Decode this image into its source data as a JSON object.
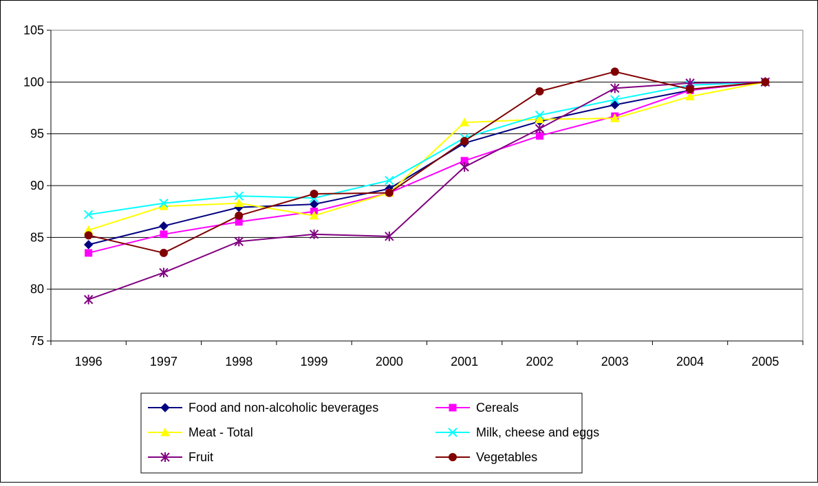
{
  "chart_data": {
    "type": "line",
    "title": "",
    "xlabel": "",
    "ylabel": "",
    "x": [
      "1996",
      "1997",
      "1998",
      "1999",
      "2000",
      "2001",
      "2002",
      "2003",
      "2004",
      "2005"
    ],
    "ylim": [
      75,
      105
    ],
    "yticks": [
      75,
      80,
      85,
      90,
      95,
      100,
      105
    ],
    "grid": "horizontal",
    "legend_position": "bottom",
    "series": [
      {
        "name": "Food and non-alcoholic beverages",
        "color": "#000080",
        "marker": "diamond",
        "values": [
          84.3,
          86.1,
          87.9,
          88.2,
          89.7,
          94.1,
          96.2,
          97.8,
          99.2,
          100.0
        ]
      },
      {
        "name": "Cereals",
        "color": "#FF00FF",
        "marker": "square",
        "values": [
          83.5,
          85.3,
          86.5,
          87.5,
          89.3,
          92.4,
          94.8,
          96.7,
          99.2,
          100.0
        ]
      },
      {
        "name": "Meat - Total",
        "color": "#FFFF00",
        "marker": "triangle",
        "values": [
          85.7,
          88.0,
          88.3,
          87.1,
          89.3,
          96.1,
          96.4,
          96.5,
          98.6,
          100.0
        ]
      },
      {
        "name": "Milk, cheese and eggs",
        "color": "#00FFFF",
        "marker": "x",
        "values": [
          87.2,
          88.3,
          89.0,
          88.8,
          90.5,
          94.6,
          96.8,
          98.3,
          99.7,
          100.0
        ]
      },
      {
        "name": "Fruit",
        "color": "#800080",
        "marker": "star",
        "values": [
          79.0,
          81.6,
          84.6,
          85.3,
          85.1,
          91.8,
          95.5,
          99.4,
          99.9,
          100.0
        ]
      },
      {
        "name": "Vegetables",
        "color": "#800000",
        "marker": "circle",
        "values": [
          85.2,
          83.5,
          87.1,
          89.2,
          89.3,
          94.3,
          99.1,
          101.0,
          99.3,
          100.0
        ]
      }
    ]
  }
}
